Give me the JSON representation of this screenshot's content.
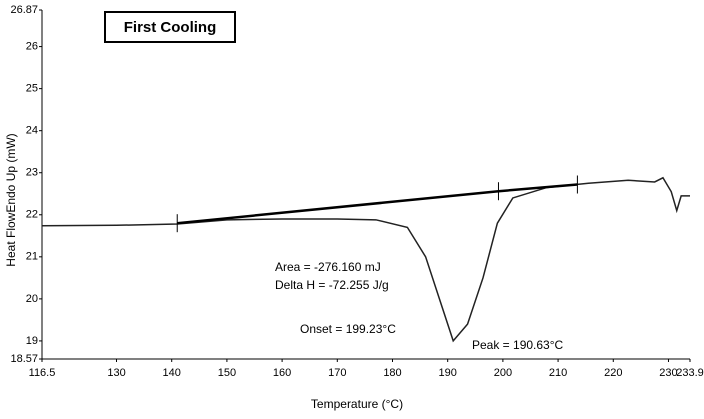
{
  "chart_data": {
    "type": "line",
    "title": "First Cooling",
    "x_label": "Temperature (°C)",
    "y_label": "Heat FlowEndo Up (mW)",
    "annotations": [
      "Area = -276.160 mJ",
      "Delta H = -72.255 J/g",
      "Onset = 199.23°C",
      "Peak = 190.63°C"
    ],
    "xlim": [
      116.5,
      233.9
    ],
    "xticks": [
      116.5,
      130,
      140,
      150,
      160,
      170,
      180,
      190,
      200,
      210,
      220,
      230,
      233.9
    ],
    "ylim": [
      18.57,
      26.87
    ],
    "yticks": [
      18.57,
      19,
      20,
      21,
      22,
      23,
      24,
      25,
      26,
      26.87
    ],
    "series": [
      {
        "color": "#222222",
        "x": [
          116.5,
          130,
          141,
          150,
          160,
          170,
          177,
          182.7,
          186,
          189,
          191,
          193.6,
          196.4,
          199,
          201.8,
          208,
          215.5,
          222.7,
          227.5,
          229,
          230.5,
          231.5,
          232.3,
          233.9
        ],
        "values": [
          21.74,
          21.75,
          21.78,
          21.88,
          21.9,
          21.9,
          21.88,
          21.7,
          21.0,
          19.8,
          19.0,
          19.4,
          20.5,
          21.8,
          22.4,
          22.65,
          22.75,
          22.82,
          22.78,
          22.88,
          22.55,
          22.1,
          22.45,
          22.45
        ]
      },
      {
        "color": "#000000",
        "x": [
          141,
          199.2,
          213.5
        ],
        "values": [
          21.8,
          22.56,
          22.72
        ]
      }
    ]
  }
}
